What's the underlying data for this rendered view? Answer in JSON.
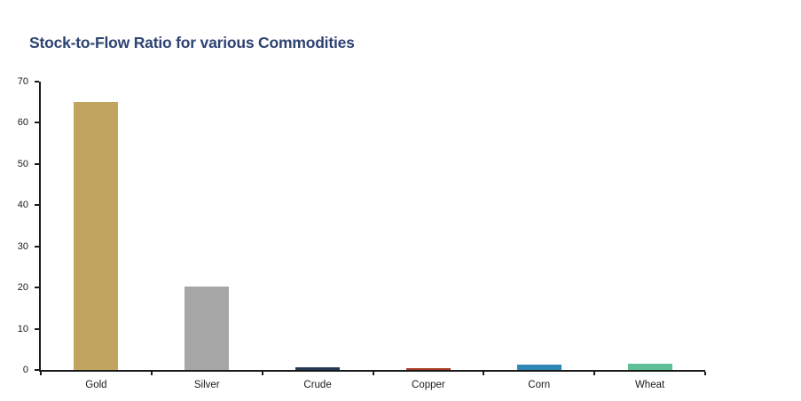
{
  "title": {
    "text": "Stock-to-Flow Ratio for various Commodities",
    "color": "#2E4372"
  },
  "chart_data": {
    "type": "bar",
    "title": "Stock-to-Flow Ratio for various Commodities",
    "categories": [
      "Gold",
      "Silver",
      "Crude",
      "Copper",
      "Corn",
      "Wheat"
    ],
    "values": [
      65,
      20.3,
      0.6,
      0.4,
      1.2,
      1.6
    ],
    "bar_colors": [
      "#C2A461",
      "#A6A6A6",
      "#253955",
      "#A93A26",
      "#2E86B5",
      "#5FBF96"
    ],
    "xlabel": "",
    "ylabel": "",
    "ylim": [
      0,
      70
    ],
    "ytick_step": 10,
    "ytick_labels": [
      "0",
      "10",
      "20",
      "30",
      "40",
      "50",
      "60",
      "70"
    ],
    "grid": false,
    "legend": "none",
    "axis_color": "#1a1a1a",
    "background_color": "#FFFFFF"
  }
}
